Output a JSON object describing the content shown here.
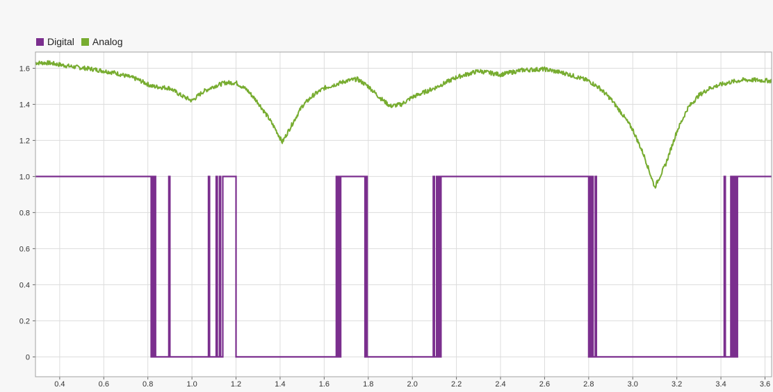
{
  "chart_data": {
    "type": "line",
    "title": "",
    "xlabel": "",
    "ylabel": "",
    "xlim": [
      0.29,
      3.63
    ],
    "ylim": [
      -0.11,
      1.69
    ],
    "grid": true,
    "legend_position": "top-left",
    "xticks": [
      "0.4",
      "0.6",
      "0.8",
      "1.0",
      "1.2",
      "1.4",
      "1.6",
      "1.8",
      "2.0",
      "2.2",
      "2.4",
      "2.6",
      "2.8",
      "3.0",
      "3.2",
      "3.4",
      "3.6"
    ],
    "yticks": [
      "0",
      "0.2",
      "0.4",
      "0.6",
      "0.8",
      "1.0",
      "1.2",
      "1.4",
      "1.6"
    ],
    "series": [
      {
        "name": "Digital",
        "color": "#7b2f8e",
        "style": "step",
        "points": [
          [
            0.29,
            1
          ],
          [
            0.815,
            1
          ],
          [
            0.815,
            0
          ],
          [
            0.82,
            0
          ],
          [
            0.82,
            1
          ],
          [
            0.825,
            1
          ],
          [
            0.825,
            0
          ],
          [
            0.83,
            0
          ],
          [
            0.83,
            1
          ],
          [
            0.835,
            1
          ],
          [
            0.835,
            0
          ],
          [
            0.895,
            0
          ],
          [
            0.895,
            1
          ],
          [
            0.9,
            1
          ],
          [
            0.9,
            0
          ],
          [
            1.075,
            0
          ],
          [
            1.075,
            1
          ],
          [
            1.08,
            1
          ],
          [
            1.08,
            0
          ],
          [
            1.11,
            0
          ],
          [
            1.11,
            1
          ],
          [
            1.115,
            1
          ],
          [
            1.115,
            0
          ],
          [
            1.125,
            0
          ],
          [
            1.125,
            1
          ],
          [
            1.13,
            1
          ],
          [
            1.13,
            0
          ],
          [
            1.14,
            0
          ],
          [
            1.14,
            1
          ],
          [
            1.2,
            1
          ],
          [
            1.2,
            0
          ],
          [
            1.21,
            0
          ],
          [
            1.655,
            0
          ],
          [
            1.655,
            1
          ],
          [
            1.66,
            1
          ],
          [
            1.66,
            0
          ],
          [
            1.665,
            0
          ],
          [
            1.665,
            1
          ],
          [
            1.67,
            1
          ],
          [
            1.67,
            0
          ],
          [
            1.675,
            0
          ],
          [
            1.675,
            1
          ],
          [
            1.785,
            1
          ],
          [
            1.785,
            0
          ],
          [
            1.79,
            0
          ],
          [
            1.79,
            1
          ],
          [
            1.795,
            1
          ],
          [
            1.795,
            0
          ],
          [
            1.8,
            0
          ],
          [
            2.095,
            0
          ],
          [
            2.095,
            1
          ],
          [
            2.1,
            1
          ],
          [
            2.1,
            0
          ],
          [
            2.11,
            0
          ],
          [
            2.11,
            1
          ],
          [
            2.115,
            1
          ],
          [
            2.115,
            0
          ],
          [
            2.12,
            0
          ],
          [
            2.12,
            1
          ],
          [
            2.125,
            1
          ],
          [
            2.125,
            0
          ],
          [
            2.13,
            0
          ],
          [
            2.13,
            1
          ],
          [
            2.8,
            1
          ],
          [
            2.8,
            0
          ],
          [
            2.805,
            0
          ],
          [
            2.805,
            1
          ],
          [
            2.81,
            1
          ],
          [
            2.81,
            0
          ],
          [
            2.815,
            0
          ],
          [
            2.815,
            1
          ],
          [
            2.82,
            1
          ],
          [
            2.82,
            0
          ],
          [
            2.83,
            0
          ],
          [
            2.83,
            1
          ],
          [
            2.835,
            1
          ],
          [
            2.835,
            0
          ],
          [
            3.415,
            0
          ],
          [
            3.415,
            1
          ],
          [
            3.42,
            1
          ],
          [
            3.42,
            0
          ],
          [
            3.445,
            0
          ],
          [
            3.445,
            1
          ],
          [
            3.45,
            1
          ],
          [
            3.45,
            0
          ],
          [
            3.455,
            0
          ],
          [
            3.455,
            1
          ],
          [
            3.46,
            1
          ],
          [
            3.46,
            0
          ],
          [
            3.465,
            0
          ],
          [
            3.465,
            1
          ],
          [
            3.47,
            1
          ],
          [
            3.47,
            0
          ],
          [
            3.475,
            0
          ],
          [
            3.475,
            1
          ],
          [
            3.63,
            1
          ]
        ]
      },
      {
        "name": "Analog",
        "color": "#77ac30",
        "style": "line",
        "noise": 0.012,
        "points": [
          [
            0.29,
            1.63
          ],
          [
            0.35,
            1.63
          ],
          [
            0.45,
            1.61
          ],
          [
            0.55,
            1.595
          ],
          [
            0.65,
            1.575
          ],
          [
            0.75,
            1.54
          ],
          [
            0.82,
            1.5
          ],
          [
            0.9,
            1.49
          ],
          [
            0.95,
            1.45
          ],
          [
            1.0,
            1.42
          ],
          [
            1.05,
            1.47
          ],
          [
            1.1,
            1.5
          ],
          [
            1.15,
            1.52
          ],
          [
            1.2,
            1.52
          ],
          [
            1.25,
            1.48
          ],
          [
            1.3,
            1.41
          ],
          [
            1.35,
            1.32
          ],
          [
            1.38,
            1.26
          ],
          [
            1.41,
            1.19
          ],
          [
            1.45,
            1.28
          ],
          [
            1.5,
            1.39
          ],
          [
            1.55,
            1.45
          ],
          [
            1.6,
            1.49
          ],
          [
            1.65,
            1.51
          ],
          [
            1.7,
            1.53
          ],
          [
            1.75,
            1.54
          ],
          [
            1.8,
            1.5
          ],
          [
            1.85,
            1.44
          ],
          [
            1.9,
            1.39
          ],
          [
            1.95,
            1.4
          ],
          [
            2.0,
            1.44
          ],
          [
            2.1,
            1.49
          ],
          [
            2.2,
            1.55
          ],
          [
            2.3,
            1.585
          ],
          [
            2.4,
            1.565
          ],
          [
            2.5,
            1.59
          ],
          [
            2.6,
            1.595
          ],
          [
            2.7,
            1.57
          ],
          [
            2.8,
            1.53
          ],
          [
            2.85,
            1.49
          ],
          [
            2.9,
            1.43
          ],
          [
            2.95,
            1.35
          ],
          [
            3.0,
            1.26
          ],
          [
            3.05,
            1.12
          ],
          [
            3.1,
            0.94
          ],
          [
            3.15,
            1.07
          ],
          [
            3.2,
            1.25
          ],
          [
            3.25,
            1.38
          ],
          [
            3.3,
            1.45
          ],
          [
            3.35,
            1.49
          ],
          [
            3.4,
            1.51
          ],
          [
            3.45,
            1.525
          ],
          [
            3.5,
            1.535
          ],
          [
            3.55,
            1.535
          ],
          [
            3.63,
            1.53
          ]
        ]
      }
    ]
  }
}
